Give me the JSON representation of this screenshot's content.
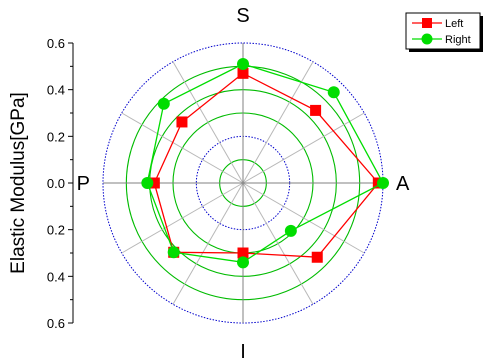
{
  "chart_data": {
    "type": "radar",
    "ylabel": "Elastic Modulus[GPa]",
    "directions": [
      "S",
      "A",
      "I",
      "P"
    ],
    "axis_ticks": [
      "0.6",
      "0.4",
      "0.2",
      "0.0",
      "0.2",
      "0.4",
      "0.6"
    ],
    "rmax": 0.6,
    "ring_values": [
      0.1,
      0.2,
      0.3,
      0.4,
      0.5,
      0.6
    ],
    "ring_colors": [
      "#00bb00",
      "#0000cc",
      "#00bb00",
      "#00bb00",
      "#00bb00",
      "#0000cc"
    ],
    "angle_step_deg": 30,
    "legend_position": "top-right",
    "series": [
      {
        "name": "Left",
        "color": "#ff0000",
        "marker": "square",
        "angles_deg": [
          0,
          45,
          90,
          135,
          180,
          225,
          270,
          315
        ],
        "values": [
          0.47,
          0.44,
          0.58,
          0.45,
          0.3,
          0.42,
          0.38,
          0.37
        ]
      },
      {
        "name": "Right",
        "color": "#00dd00",
        "marker": "circle",
        "angles_deg": [
          0,
          45,
          90,
          135,
          180,
          225,
          270,
          315
        ],
        "values": [
          0.51,
          0.55,
          0.6,
          0.29,
          0.34,
          0.42,
          0.41,
          0.48
        ]
      }
    ]
  }
}
